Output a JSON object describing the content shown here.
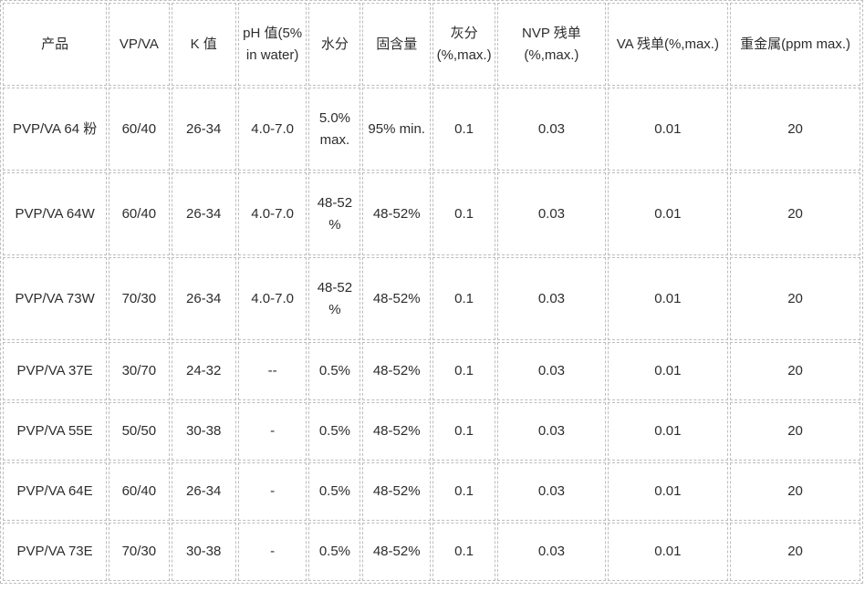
{
  "table": {
    "columns": [
      "产品",
      "VP/VA",
      "K 值",
      "pH 值(5%\nin water)",
      "水分",
      "固含量",
      "灰分\n(%,max.)",
      "NVP 残单\n(%,max.)",
      "VA 残单(%,max.)",
      "重金属(ppm max.)"
    ],
    "rows": [
      [
        "PVP/VA 64 粉",
        "60/40",
        "26-34",
        "4.0-7.0",
        "5.0%\nmax.",
        "95% min.",
        "0.1",
        "0.03",
        "0.01",
        "20"
      ],
      [
        "PVP/VA 64W",
        "60/40",
        "26-34",
        "4.0-7.0",
        "48-52\n%",
        "48-52%",
        "0.1",
        "0.03",
        "0.01",
        "20"
      ],
      [
        "PVP/VA 73W",
        "70/30",
        "26-34",
        "4.0-7.0",
        "48-52\n%",
        "48-52%",
        "0.1",
        "0.03",
        "0.01",
        "20"
      ],
      [
        "PVP/VA 37E",
        "30/70",
        "24-32",
        "--",
        "0.5%",
        "48-52%",
        "0.1",
        "0.03",
        "0.01",
        "20"
      ],
      [
        "PVP/VA 55E",
        "50/50",
        "30-38",
        "-",
        "0.5%",
        "48-52%",
        "0.1",
        "0.03",
        "0.01",
        "20"
      ],
      [
        "PVP/VA 64E",
        "60/40",
        "26-34",
        "-",
        "0.5%",
        "48-52%",
        "0.1",
        "0.03",
        "0.01",
        "20"
      ],
      [
        "PVP/VA 73E",
        "70/30",
        "30-38",
        "-",
        "0.5%",
        "48-52%",
        "0.1",
        "0.03",
        "0.01",
        "20"
      ]
    ]
  },
  "colors": {
    "border": "#bdbdbd",
    "text": "#2d2d2d",
    "background": "#ffffff"
  }
}
